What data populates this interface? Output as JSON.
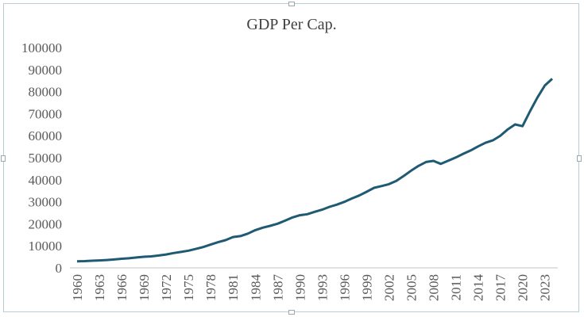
{
  "chart_data": {
    "type": "line",
    "title": "GDP Per Cap.",
    "xlabel": "",
    "ylabel": "",
    "ylim": [
      0,
      100000
    ],
    "yticks": [
      0,
      10000,
      20000,
      30000,
      40000,
      50000,
      60000,
      70000,
      80000,
      90000,
      100000
    ],
    "xlim": [
      1960,
      2024
    ],
    "xticks": [
      1960,
      1963,
      1966,
      1969,
      1972,
      1975,
      1978,
      1981,
      1984,
      1987,
      1990,
      1993,
      1996,
      1999,
      2002,
      2005,
      2008,
      2011,
      2014,
      2017,
      2020,
      2023
    ],
    "grid": false,
    "color": "#1f5a73",
    "series": [
      {
        "x": [
          1960,
          1961,
          1962,
          1963,
          1964,
          1965,
          1966,
          1967,
          1968,
          1969,
          1970,
          1971,
          1972,
          1973,
          1974,
          1975,
          1976,
          1977,
          1978,
          1979,
          1980,
          1981,
          1982,
          1983,
          1984,
          1985,
          1986,
          1987,
          1988,
          1989,
          1990,
          1991,
          1992,
          1993,
          1994,
          1995,
          1996,
          1997,
          1998,
          1999,
          2000,
          2001,
          2002,
          2003,
          2004,
          2005,
          2006,
          2007,
          2008,
          2009,
          2010,
          2011,
          2012,
          2013,
          2014,
          2015,
          2016,
          2017,
          2018,
          2019,
          2020,
          2021,
          2022,
          2023,
          2024
        ],
        "values": [
          3000,
          3070,
          3240,
          3380,
          3570,
          3830,
          4150,
          4340,
          4700,
          5030,
          5230,
          5610,
          6090,
          6730,
          7230,
          7800,
          8590,
          9450,
          10570,
          11670,
          12580,
          13980,
          14430,
          15540,
          17120,
          18240,
          19070,
          20040,
          21420,
          22860,
          23890,
          24340,
          25420,
          26390,
          27700,
          28690,
          29970,
          31460,
          32850,
          34520,
          36330,
          37130,
          38000,
          39490,
          41730,
          44120,
          46300,
          48050,
          48570,
          47200,
          48650,
          50070,
          51780,
          53290,
          55120,
          56760,
          57870,
          59920,
          62810,
          65100,
          64320,
          71060,
          77250,
          82770,
          85810
        ]
      }
    ]
  }
}
